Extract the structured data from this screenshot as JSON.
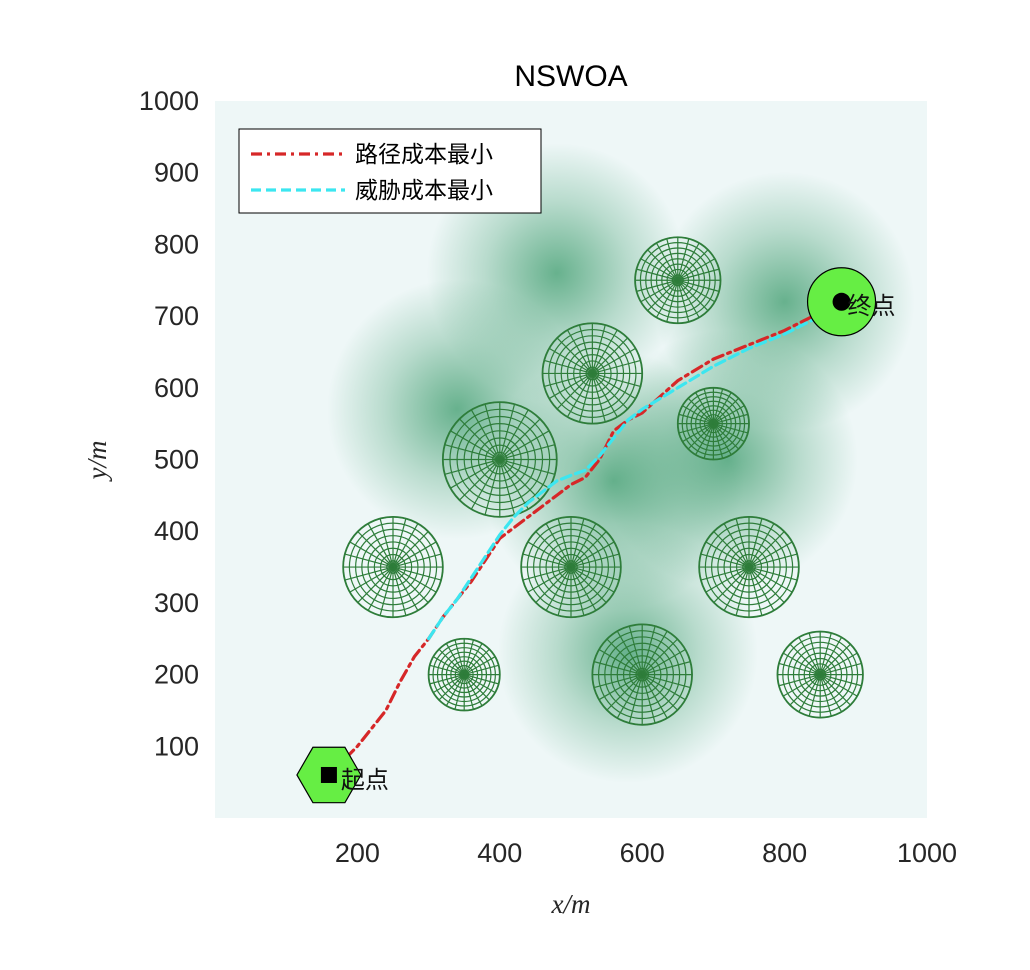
{
  "chart_data": {
    "type": "line",
    "title": "NSWOA",
    "xlabel": "x/m",
    "ylabel": "y/m",
    "xlim": [
      0,
      1000
    ],
    "ylim": [
      0,
      1000
    ],
    "xticks": [
      200,
      400,
      600,
      800,
      1000
    ],
    "yticks": [
      100,
      200,
      300,
      400,
      500,
      600,
      700,
      800,
      900,
      1000
    ],
    "grid": false,
    "legend_position": "top-left",
    "colors": {
      "background_light": "#eef7f7",
      "threat_field": "#3a9a6a",
      "obstacle_mesh": "#2e7d3a",
      "marker_fill": "#66ee44"
    },
    "threat_centers": [
      {
        "x": 480,
        "y": 760
      },
      {
        "x": 340,
        "y": 570
      },
      {
        "x": 580,
        "y": 230
      },
      {
        "x": 720,
        "y": 500
      },
      {
        "x": 560,
        "y": 470
      },
      {
        "x": 800,
        "y": 720
      }
    ],
    "obstacles": [
      {
        "x": 650,
        "y": 750,
        "r": 60
      },
      {
        "x": 530,
        "y": 620,
        "r": 70
      },
      {
        "x": 700,
        "y": 550,
        "r": 50
      },
      {
        "x": 400,
        "y": 500,
        "r": 80
      },
      {
        "x": 250,
        "y": 350,
        "r": 70
      },
      {
        "x": 500,
        "y": 350,
        "r": 70
      },
      {
        "x": 750,
        "y": 350,
        "r": 70
      },
      {
        "x": 350,
        "y": 200,
        "r": 50
      },
      {
        "x": 600,
        "y": 200,
        "r": 70
      },
      {
        "x": 850,
        "y": 200,
        "r": 60
      }
    ],
    "start": {
      "x": 160,
      "y": 60,
      "label": "起点"
    },
    "end": {
      "x": 880,
      "y": 720,
      "label": "终点"
    },
    "series": [
      {
        "name": "路径成本最小",
        "color": "#d62728",
        "style": "dash-dot",
        "x": [
          160,
          180,
          200,
          220,
          240,
          260,
          280,
          300,
          320,
          340,
          360,
          380,
          400,
          420,
          440,
          460,
          480,
          500,
          520,
          540,
          550,
          560,
          580,
          600,
          650,
          700,
          750,
          800,
          850,
          880
        ],
        "y": [
          60,
          80,
          100,
          125,
          150,
          190,
          225,
          250,
          280,
          305,
          330,
          360,
          390,
          405,
          420,
          435,
          450,
          465,
          475,
          500,
          520,
          540,
          555,
          565,
          610,
          640,
          660,
          680,
          705,
          720
        ]
      },
      {
        "name": "威胁成本最小",
        "color": "#3ce6f0",
        "style": "dashed",
        "x": [
          300,
          320,
          340,
          360,
          380,
          400,
          420,
          440,
          460,
          480,
          500,
          520,
          540,
          560,
          580,
          600,
          650,
          700,
          750,
          800,
          850,
          880
        ],
        "y": [
          250,
          280,
          305,
          335,
          365,
          395,
          420,
          440,
          455,
          470,
          478,
          485,
          505,
          530,
          555,
          570,
          600,
          630,
          655,
          675,
          700,
          720
        ]
      }
    ]
  }
}
